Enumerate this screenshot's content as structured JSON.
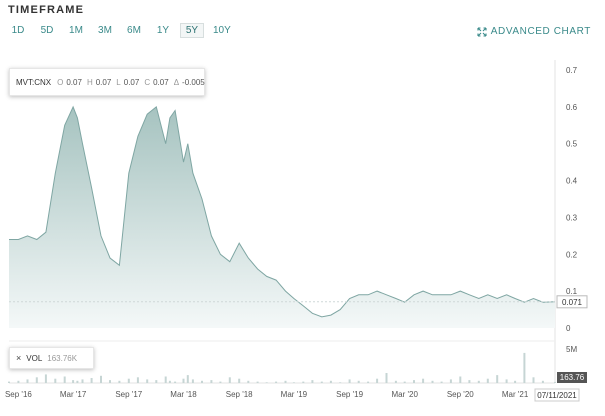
{
  "header": {
    "title": "TIMEFRAME",
    "timeframes": [
      "1D",
      "5D",
      "1M",
      "3M",
      "6M",
      "1Y",
      "5Y",
      "10Y"
    ],
    "active_timeframe": "5Y",
    "advanced_chart_label": "ADVANCED CHART"
  },
  "legend": {
    "symbol": "MVT:CNX",
    "open_key": "O",
    "open": "0.07",
    "high_key": "H",
    "high": "0.07",
    "low_key": "L",
    "low": "0.07",
    "close_key": "C",
    "close": "0.07",
    "change_key": "Δ",
    "change": "-0.005"
  },
  "volume_legend": {
    "close_symbol": "×",
    "label": "VOL",
    "value": "163.76K"
  },
  "colors": {
    "accent": "#3a8a8a",
    "line": "#7fa6a3",
    "fill_top": "#a6c3c0",
    "fill_bottom": "#f4f8f8",
    "volume_bar": "#c6d5d4",
    "badge_bg": "#555555"
  },
  "chart_data": {
    "type": "area",
    "x_tick_labels": [
      "Sep '16",
      "Mar '17",
      "Sep '17",
      "Mar '18",
      "Sep '18",
      "Mar '19",
      "Sep '19",
      "Mar '20",
      "Sep '20",
      "Mar '21"
    ],
    "x_highlight_label": "07/11/2021",
    "y_tick_labels": [
      "0.7",
      "0.6",
      "0.5",
      "0.4",
      "0.3",
      "0.2",
      "0.1",
      "0"
    ],
    "ylim": [
      0,
      0.7
    ],
    "last_value_label": "0.071",
    "volume_y_tick_label": "5M",
    "volume_last_label": "163.76",
    "series": [
      {
        "x": [
          "2016-08-01",
          "2016-09-01",
          "2016-10-01",
          "2016-11-01",
          "2016-12-01",
          "2017-01-01",
          "2017-02-01",
          "2017-03-01",
          "2017-03-15",
          "2017-04-01",
          "2017-05-01",
          "2017-06-01",
          "2017-07-01",
          "2017-08-01",
          "2017-09-01",
          "2017-10-01",
          "2017-11-01",
          "2017-12-01",
          "2018-01-01",
          "2018-01-15",
          "2018-02-01",
          "2018-03-01",
          "2018-03-15",
          "2018-04-01",
          "2018-05-01",
          "2018-06-01",
          "2018-07-01",
          "2018-08-01",
          "2018-09-01",
          "2018-10-01",
          "2018-11-01",
          "2018-12-01",
          "2019-01-01",
          "2019-02-01",
          "2019-03-01",
          "2019-04-01",
          "2019-05-01",
          "2019-06-01",
          "2019-07-01",
          "2019-08-01",
          "2019-09-01",
          "2019-10-01",
          "2019-11-01",
          "2019-12-01",
          "2020-01-01",
          "2020-02-01",
          "2020-03-01",
          "2020-04-01",
          "2020-05-01",
          "2020-06-01",
          "2020-07-01",
          "2020-08-01",
          "2020-09-01",
          "2020-10-01",
          "2020-11-01",
          "2020-12-01",
          "2021-01-01",
          "2021-02-01",
          "2021-03-01",
          "2021-04-01",
          "2021-05-01",
          "2021-06-01",
          "2021-07-11"
        ],
        "values": [
          0.24,
          0.24,
          0.25,
          0.24,
          0.26,
          0.42,
          0.55,
          0.6,
          0.57,
          0.5,
          0.38,
          0.25,
          0.19,
          0.17,
          0.42,
          0.52,
          0.58,
          0.6,
          0.5,
          0.57,
          0.59,
          0.45,
          0.5,
          0.42,
          0.35,
          0.25,
          0.2,
          0.18,
          0.23,
          0.19,
          0.16,
          0.14,
          0.13,
          0.1,
          0.08,
          0.06,
          0.04,
          0.03,
          0.035,
          0.05,
          0.08,
          0.09,
          0.09,
          0.1,
          0.09,
          0.08,
          0.07,
          0.09,
          0.1,
          0.09,
          0.09,
          0.09,
          0.1,
          0.09,
          0.08,
          0.09,
          0.08,
          0.09,
          0.08,
          0.07,
          0.08,
          0.07,
          0.071
        ]
      }
    ],
    "volume": {
      "values": [
        0.2,
        0.3,
        0.5,
        0.8,
        1.2,
        0.6,
        0.9,
        0.4,
        0.3,
        0.5,
        0.7,
        1.0,
        0.4,
        0.3,
        0.6,
        0.8,
        0.5,
        0.4,
        0.9,
        0.3,
        0.2,
        0.6,
        1.1,
        0.5,
        0.3,
        0.4,
        0.2,
        0.8,
        0.6,
        0.3,
        0.2,
        0.1,
        0.2,
        0.3,
        0.1,
        0.2,
        0.4,
        0.2,
        0.3,
        0.1,
        0.5,
        0.3,
        0.2,
        0.6,
        1.4,
        0.3,
        0.2,
        0.4,
        0.6,
        0.3,
        0.2,
        0.5,
        0.9,
        0.4,
        0.3,
        0.6,
        1.1,
        0.5,
        0.3,
        4.2,
        0.8,
        0.3,
        0.16
      ]
    }
  }
}
